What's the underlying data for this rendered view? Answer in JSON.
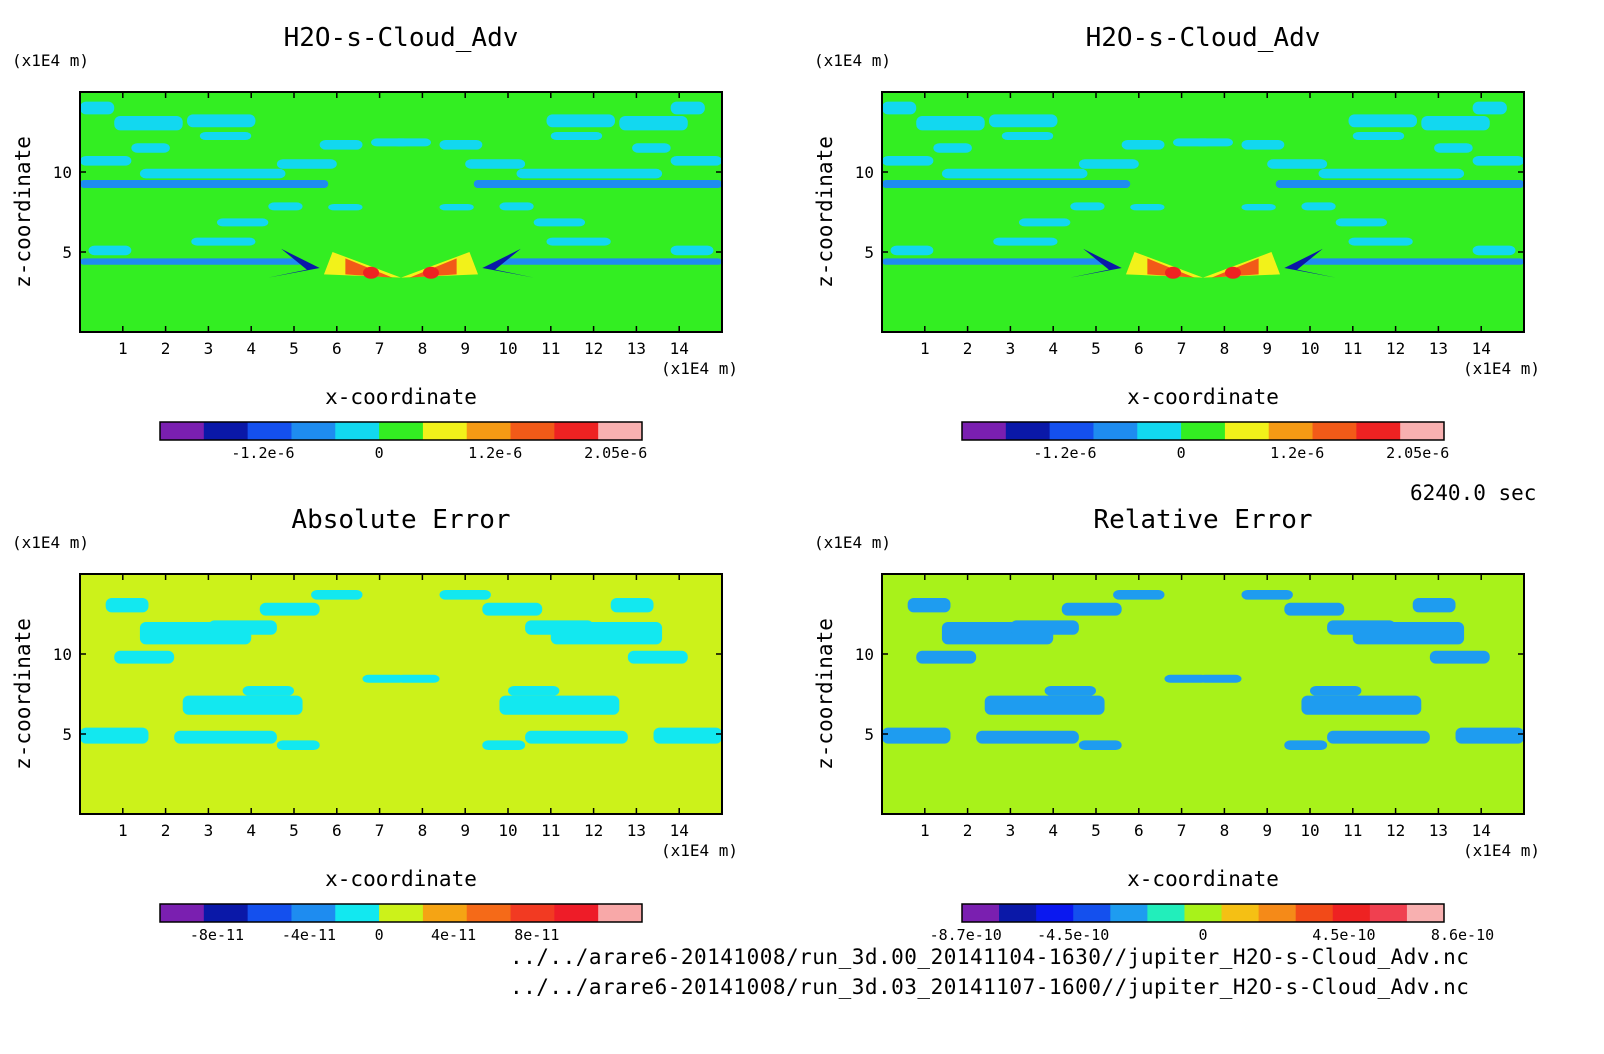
{
  "time_label": "6240.0 sec",
  "footer": [
    "../../arare6-20141008/run_3d.00_20141104-1630//jupiter_H2O-s-Cloud_Adv.nc",
    "../../arare6-20141008/run_3d.03_20141107-1600//jupiter_H2O-s-Cloud_Adv.nc"
  ],
  "chart_data": [
    {
      "type": "heatmap",
      "title": "H2O-s-Cloud_Adv",
      "xlabel": "x-coordinate",
      "ylabel": "z-coordinate",
      "x_unit": "(x1E4 m)",
      "y_unit": "(x1E4 m)",
      "xlim": [
        0,
        15
      ],
      "ylim": [
        0,
        15
      ],
      "xticks": [
        "1",
        "2",
        "3",
        "4",
        "5",
        "6",
        "7",
        "8",
        "9",
        "10",
        "11",
        "12",
        "13",
        "14"
      ],
      "yticks": [
        "5",
        "10"
      ],
      "background": "#33ee22",
      "colorbar": {
        "colors": [
          "#7a1fb0",
          "#0a18a8",
          "#1450ee",
          "#1e8cf0",
          "#12d8f0",
          "#33ee22",
          "#f2f21a",
          "#f59a14",
          "#f25a18",
          "#ee2222",
          "#f8b0b0"
        ],
        "labels": [
          "-1.2e-6",
          "0",
          "1.2e-6",
          "2.05e-6"
        ],
        "label_positions": [
          2.35,
          5.0,
          7.65,
          10.4
        ]
      }
    },
    {
      "type": "heatmap",
      "title": "H2O-s-Cloud_Adv",
      "xlabel": "x-coordinate",
      "ylabel": "z-coordinate",
      "x_unit": "(x1E4 m)",
      "y_unit": "(x1E4 m)",
      "xlim": [
        0,
        15
      ],
      "ylim": [
        0,
        15
      ],
      "xticks": [
        "1",
        "2",
        "3",
        "4",
        "5",
        "6",
        "7",
        "8",
        "9",
        "10",
        "11",
        "12",
        "13",
        "14"
      ],
      "yticks": [
        "5",
        "10"
      ],
      "background": "#33ee22",
      "colorbar": {
        "colors": [
          "#7a1fb0",
          "#0a18a8",
          "#1450ee",
          "#1e8cf0",
          "#12d8f0",
          "#33ee22",
          "#f2f21a",
          "#f59a14",
          "#f25a18",
          "#ee2222",
          "#f8b0b0"
        ],
        "labels": [
          "-1.2e-6",
          "0",
          "1.2e-6",
          "2.05e-6"
        ],
        "label_positions": [
          2.35,
          5.0,
          7.65,
          10.4
        ]
      }
    },
    {
      "type": "heatmap",
      "title": "Absolute Error",
      "xlabel": "x-coordinate",
      "ylabel": "z-coordinate",
      "x_unit": "(x1E4 m)",
      "y_unit": "(x1E4 m)",
      "xlim": [
        0,
        15
      ],
      "ylim": [
        0,
        15
      ],
      "xticks": [
        "1",
        "2",
        "3",
        "4",
        "5",
        "6",
        "7",
        "8",
        "9",
        "10",
        "11",
        "12",
        "13",
        "14"
      ],
      "yticks": [
        "5",
        "10"
      ],
      "background": "#ccf21a",
      "colorbar": {
        "colors": [
          "#7a1fb0",
          "#0a18a8",
          "#1450ee",
          "#1e8cf0",
          "#12e8f0",
          "#ccf21a",
          "#f5a414",
          "#f56a18",
          "#f23a22",
          "#ee1c28",
          "#f8a8a8"
        ],
        "labels": [
          "-8e-11",
          "-4e-11",
          "0",
          "4e-11",
          "8e-11"
        ],
        "label_positions": [
          1.3,
          3.4,
          5.0,
          6.7,
          8.6
        ]
      }
    },
    {
      "type": "heatmap",
      "title": "Relative Error",
      "xlabel": "x-coordinate",
      "ylabel": "z-coordinate",
      "x_unit": "(x1E4 m)",
      "y_unit": "(x1E4 m)",
      "xlim": [
        0,
        15
      ],
      "ylim": [
        0,
        15
      ],
      "xticks": [
        "1",
        "2",
        "3",
        "4",
        "5",
        "6",
        "7",
        "8",
        "9",
        "10",
        "11",
        "12",
        "13",
        "14"
      ],
      "yticks": [
        "5",
        "10"
      ],
      "background": "#a8f21a",
      "colorbar": {
        "colors": [
          "#7a1fb0",
          "#0a18a8",
          "#0a18f0",
          "#1450ee",
          "#1e9cf0",
          "#22eebb",
          "#a8f21a",
          "#f5c014",
          "#f58a18",
          "#f24a18",
          "#ee2222",
          "#f04050",
          "#f8b0b0"
        ],
        "labels": [
          "-8.7e-10",
          "-4.5e-10",
          "0",
          "4.5e-10",
          "8.6e-10"
        ],
        "label_positions": [
          0.1,
          3.0,
          6.5,
          10.3,
          13.5
        ]
      }
    }
  ]
}
